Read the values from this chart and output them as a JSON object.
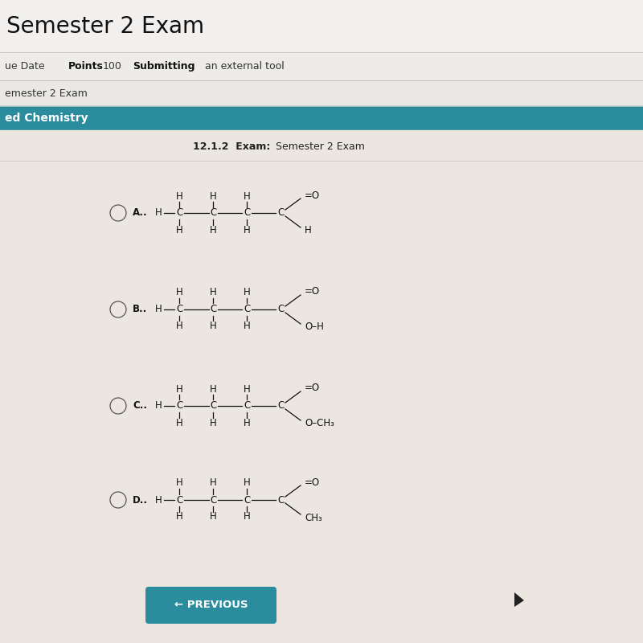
{
  "bg_color": "#e0ddd8",
  "content_bg": "#ebe7e0",
  "header_bg": "#f2f2f2",
  "teal_bg": "#2b8c9e",
  "title_text": "Semester 2 Exam",
  "title_fontsize": 20,
  "subtitle_due": "ue Date",
  "subtitle_points_label": "Points",
  "subtitle_points_val": "100",
  "subtitle_sub_label": "Submitting",
  "subtitle_sub_val": "an external tool",
  "breadcrumb": "emester 2 Exam",
  "section_label": "ed Chemistry",
  "exam_bold": "12.1.2  Exam:",
  "exam_normal": "  Semester 2 Exam",
  "button_text": "← PREVIOUS",
  "button_color": "#2b8c9e",
  "button_text_color": "#ffffff",
  "text_color": "#1a1a1a",
  "line_color": "#1a1a1a"
}
